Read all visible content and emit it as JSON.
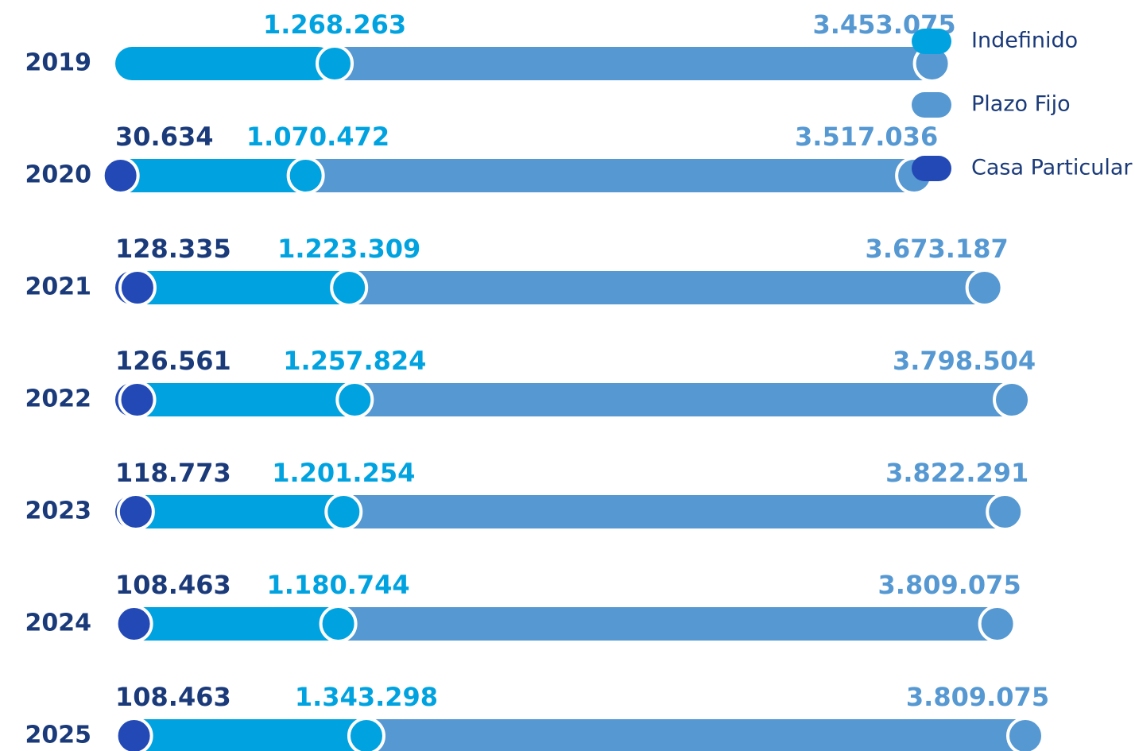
{
  "chart_data": {
    "type": "stacked_bar_horizontal",
    "categories": [
      "2019",
      "2020",
      "2021",
      "2022",
      "2023",
      "2024",
      "2025"
    ],
    "series": [
      {
        "name": "Casa Particular",
        "color": "#2249b5",
        "values": [
          null,
          30634,
          128335,
          126561,
          118773,
          108463,
          108463
        ],
        "value_labels": [
          null,
          "30.634",
          "128.335",
          "126.561",
          "118.773",
          "108.463",
          "108.463"
        ]
      },
      {
        "name": "Indefinido",
        "color": "#00a3e0",
        "values": [
          1268263,
          1070472,
          1223309,
          1257824,
          1201254,
          1180744,
          1343298
        ],
        "value_labels": [
          "1.268.263",
          "1.070.472",
          "1.223.309",
          "1.257.824",
          "1.201.254",
          "1.180.744",
          "1.343.298"
        ]
      },
      {
        "name": "Plazo Fijo",
        "color": "#5598d2",
        "values": [
          3453075,
          3517036,
          3673187,
          3798504,
          3822291,
          3809075,
          3809075
        ],
        "value_labels": [
          "3.453.075",
          "3.517.036",
          "3.673.187",
          "3.798.504",
          "3.822.291",
          "3.809.075",
          "3.809.075"
        ]
      }
    ],
    "legend_order": [
      1,
      2,
      0
    ],
    "legend": "top-right"
  }
}
